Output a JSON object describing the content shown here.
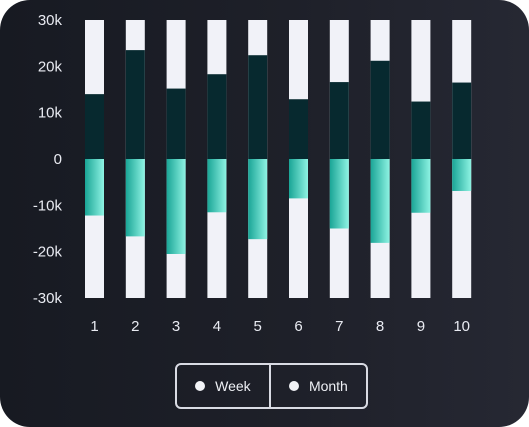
{
  "colors": {
    "track": "#f1f2f8",
    "positive": "#07292f",
    "negative_start": "#1aa596",
    "negative_end": "#8ef3e3",
    "text": "#e9ebf2"
  },
  "chart_data": {
    "type": "bar",
    "title": "",
    "xlabel": "",
    "ylabel": "",
    "categories": [
      "1",
      "2",
      "3",
      "4",
      "5",
      "6",
      "7",
      "8",
      "9",
      "10"
    ],
    "ylim": [
      -30000,
      30000
    ],
    "yticks": [
      30000,
      20000,
      10000,
      0,
      -10000,
      -20000,
      -30000
    ],
    "ytick_labels": [
      "30k",
      "20k",
      "10k",
      "0",
      "-10k",
      "-20k",
      "-30k"
    ],
    "series": [
      {
        "values": [
          14000,
          23500,
          15200,
          18300,
          22400,
          12900,
          16600,
          21200,
          12400,
          16500
        ]
      },
      {
        "values": [
          -12200,
          -16700,
          -20500,
          -11500,
          -17300,
          -8500,
          -15000,
          -18100,
          -11600,
          -6900
        ]
      }
    ],
    "track_range": [
      -30000,
      30000
    ],
    "grid": false,
    "legend_position": "bottom-center"
  },
  "legend": {
    "items": [
      {
        "label": "Week"
      },
      {
        "label": "Month"
      }
    ]
  }
}
